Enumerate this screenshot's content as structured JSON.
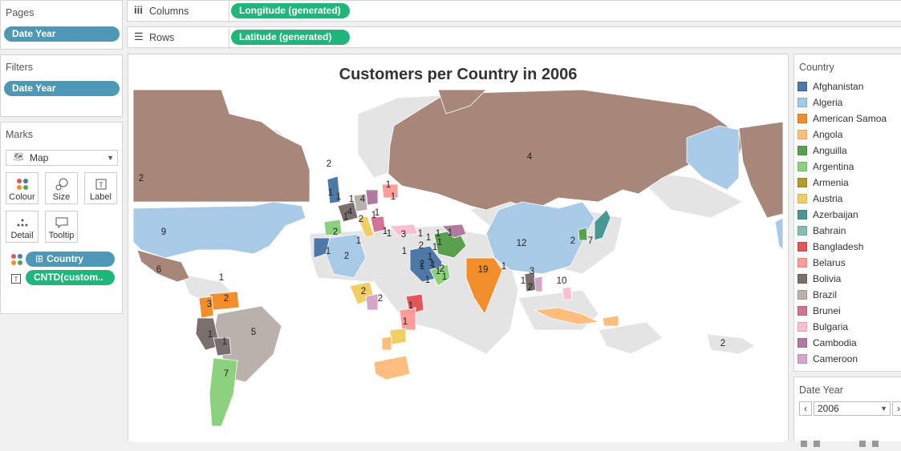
{
  "pages": {
    "title": "Pages",
    "pill": "Date Year"
  },
  "filters": {
    "title": "Filters",
    "pill": "Date Year"
  },
  "marks": {
    "title": "Marks",
    "type": "Map",
    "buttons": {
      "colour": "Colour",
      "size": "Size",
      "label": "Label",
      "detail": "Detail",
      "tooltip": "Tooltip"
    },
    "pills": {
      "country": "Country",
      "cntd": "CNTD(custom.."
    }
  },
  "shelves": {
    "columns_label": "Columns",
    "columns_pill": "Longitude (generated)",
    "rows_label": "Rows",
    "rows_pill": "Latitude (generated)"
  },
  "chart": {
    "title": "Customers per Country in 2006"
  },
  "legend": {
    "title": "Country",
    "items": [
      {
        "name": "Afghanistan",
        "color": "#4e79a7"
      },
      {
        "name": "Algeria",
        "color": "#a0cbe8"
      },
      {
        "name": "American Samoa",
        "color": "#f28e2b"
      },
      {
        "name": "Angola",
        "color": "#ffbe7d"
      },
      {
        "name": "Anguilla",
        "color": "#59a14f"
      },
      {
        "name": "Argentina",
        "color": "#8cd17d"
      },
      {
        "name": "Armenia",
        "color": "#b6992d"
      },
      {
        "name": "Austria",
        "color": "#f1ce63"
      },
      {
        "name": "Azerbaijan",
        "color": "#499894"
      },
      {
        "name": "Bahrain",
        "color": "#86bcb6"
      },
      {
        "name": "Bangladesh",
        "color": "#e15759"
      },
      {
        "name": "Belarus",
        "color": "#ff9d9a"
      },
      {
        "name": "Bolivia",
        "color": "#79706e"
      },
      {
        "name": "Brazil",
        "color": "#bab0ac"
      },
      {
        "name": "Brunei",
        "color": "#d37295"
      },
      {
        "name": "Bulgaria",
        "color": "#fabfd2"
      },
      {
        "name": "Cambodia",
        "color": "#b07aa1"
      },
      {
        "name": "Cameroon",
        "color": "#d4a6c8"
      }
    ]
  },
  "date_filter": {
    "title": "Date Year",
    "value": "2006"
  },
  "map_labels": [
    "2",
    "9",
    "6",
    "1",
    "3",
    "2",
    "1",
    "1",
    "5",
    "7",
    "2",
    "1",
    "1",
    "4",
    "4",
    "1",
    "1",
    "1",
    "1",
    "2",
    "1",
    "1",
    "2",
    "2",
    "1",
    "1",
    "3",
    "1",
    "1",
    "1",
    "1",
    "2",
    "1",
    "1",
    "1",
    "1",
    "2",
    "1",
    "2",
    "1",
    "1",
    "1",
    "1",
    "1",
    "1",
    "1",
    "4",
    "12",
    "19",
    "1",
    "3",
    "1",
    "2",
    "10",
    "2",
    "7",
    "2",
    "2",
    "1",
    "1",
    "2"
  ]
}
